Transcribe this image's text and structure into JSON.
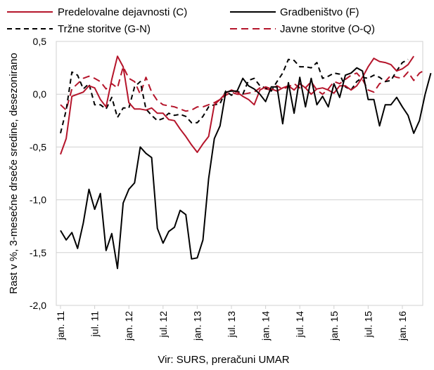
{
  "chart_data": {
    "type": "line",
    "ylabel": "Rast v %, 3-mesečne drseče sredine, desezonirano",
    "source": "Vir: SURS, preračuni UMAR",
    "ylim": [
      -2.0,
      0.5
    ],
    "ytick_values": [
      0.5,
      0.0,
      -0.5,
      -1.0,
      -1.5,
      -2.0
    ],
    "ytick_labels": [
      "0,5",
      "0,0",
      "-0,5",
      "-1,0",
      "-1,5",
      "-2,0"
    ],
    "grid": true,
    "legend_position": "top",
    "x_tick_indices": [
      0,
      6,
      12,
      18,
      24,
      30,
      36,
      42,
      48,
      54,
      60
    ],
    "x_tick_labels": [
      "jan. 11",
      "jul. 11",
      "jan. 12",
      "jul. 12",
      "jan. 13",
      "jul. 13",
      "jan. 14",
      "jul. 14",
      "jan. 15",
      "jul. 15",
      "jan. 16"
    ],
    "series": [
      {
        "name": "Predelovalne dejavnosti (C)",
        "color": "#b5152b",
        "dash": "solid",
        "values": [
          -0.57,
          -0.42,
          -0.02,
          0.0,
          0.02,
          0.08,
          0.06,
          -0.05,
          -0.12,
          0.14,
          0.36,
          0.26,
          -0.08,
          -0.14,
          -0.14,
          -0.15,
          -0.13,
          -0.18,
          -0.18,
          -0.24,
          -0.25,
          -0.33,
          -0.4,
          -0.48,
          -0.55,
          -0.47,
          -0.4,
          -0.1,
          -0.05,
          0.01,
          0.04,
          0.02,
          -0.02,
          -0.05,
          -0.1,
          0.04,
          0.07,
          0.05,
          0.03,
          0.06,
          0.08,
          0.04,
          0.1,
          0.06,
          0.0,
          0.05,
          0.06,
          0.04,
          0.01,
          0.08,
          0.08,
          0.04,
          0.08,
          0.16,
          0.26,
          0.34,
          0.31,
          0.3,
          0.28,
          0.22,
          0.24,
          0.28,
          0.36
        ]
      },
      {
        "name": "Gradbeništvo (F)",
        "color": "#000000",
        "dash": "solid",
        "values": [
          -1.29,
          -1.38,
          -1.31,
          -1.46,
          -1.22,
          -0.9,
          -1.09,
          -0.94,
          -1.48,
          -1.32,
          -1.65,
          -1.03,
          -0.9,
          -0.84,
          -0.5,
          -0.56,
          -0.6,
          -1.27,
          -1.41,
          -1.3,
          -1.26,
          -1.1,
          -1.14,
          -1.56,
          -1.55,
          -1.38,
          -0.8,
          -0.42,
          -0.3,
          0.02,
          0.03,
          0.03,
          0.15,
          0.08,
          0.05,
          0.0,
          -0.07,
          0.07,
          0.07,
          -0.28,
          0.11,
          -0.18,
          0.16,
          -0.12,
          0.15,
          -0.1,
          -0.02,
          -0.12,
          0.1,
          -0.03,
          0.18,
          0.2,
          0.25,
          0.22,
          -0.05,
          -0.05,
          -0.3,
          -0.1,
          -0.1,
          -0.03,
          -0.12,
          -0.2,
          -0.37,
          -0.25,
          0.0,
          0.2
        ]
      },
      {
        "name": "Tržne storitve (G-N)",
        "color": "#000000",
        "dash": "dashed",
        "values": [
          -0.37,
          -0.15,
          0.21,
          0.18,
          0.05,
          0.1,
          -0.1,
          -0.1,
          -0.14,
          -0.03,
          -0.22,
          -0.13,
          -0.13,
          0.07,
          0.12,
          -0.14,
          -0.2,
          -0.25,
          -0.23,
          -0.18,
          -0.2,
          -0.19,
          -0.21,
          -0.27,
          -0.27,
          -0.21,
          -0.12,
          -0.1,
          -0.09,
          0.03,
          -0.01,
          0.03,
          0.0,
          0.13,
          0.15,
          0.08,
          0.06,
          0.03,
          0.12,
          0.2,
          0.33,
          0.32,
          0.26,
          0.26,
          0.25,
          0.3,
          0.15,
          0.17,
          0.2,
          0.19,
          0.07,
          0.04,
          0.12,
          0.16,
          0.15,
          0.18,
          0.16,
          0.12,
          0.13,
          0.22,
          0.3,
          0.33
        ]
      },
      {
        "name": "Javne storitve (O-Q)",
        "color": "#b5152b",
        "dash": "dashed",
        "values": [
          -0.1,
          -0.15,
          0.05,
          0.1,
          0.15,
          0.17,
          0.15,
          0.12,
          0.05,
          0.1,
          0.06,
          0.26,
          0.15,
          0.12,
          0.0,
          0.16,
          0.02,
          -0.06,
          -0.1,
          -0.11,
          -0.12,
          -0.14,
          -0.16,
          -0.15,
          -0.12,
          -0.12,
          -0.1,
          -0.08,
          -0.05,
          -0.01,
          0.02,
          0.0,
          0.0,
          0.01,
          0.02,
          0.06,
          0.05,
          0.04,
          0.08,
          0.05,
          0.07,
          0.1,
          0.06,
          0.06,
          0.12,
          0.04,
          0.0,
          0.05,
          0.12,
          0.1,
          0.14,
          0.18,
          0.2,
          0.14,
          0.04,
          0.02,
          0.1,
          0.12,
          0.18,
          0.16,
          0.15,
          0.21,
          0.13,
          0.2,
          0.23
        ]
      }
    ]
  }
}
